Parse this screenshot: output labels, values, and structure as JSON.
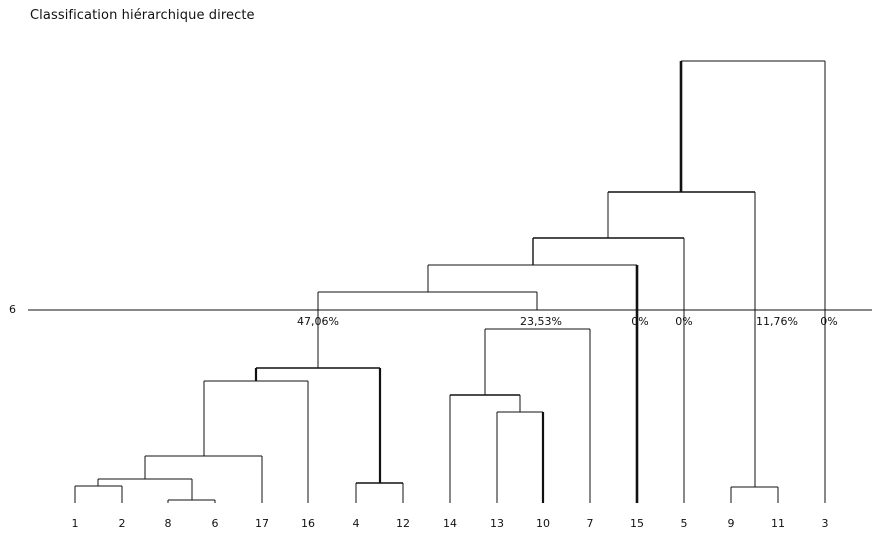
{
  "title": "Classification hiérarchique directe",
  "cut_label": "6",
  "leaves": [
    "1",
    "2",
    "8",
    "6",
    "17",
    "16",
    "4",
    "12",
    "14",
    "13",
    "10",
    "7",
    "15",
    "5",
    "9",
    "11",
    "3"
  ],
  "cluster_percentages": [
    "47,06%",
    "23,53%",
    "0%",
    "0%",
    "11,76%",
    "0%"
  ]
}
